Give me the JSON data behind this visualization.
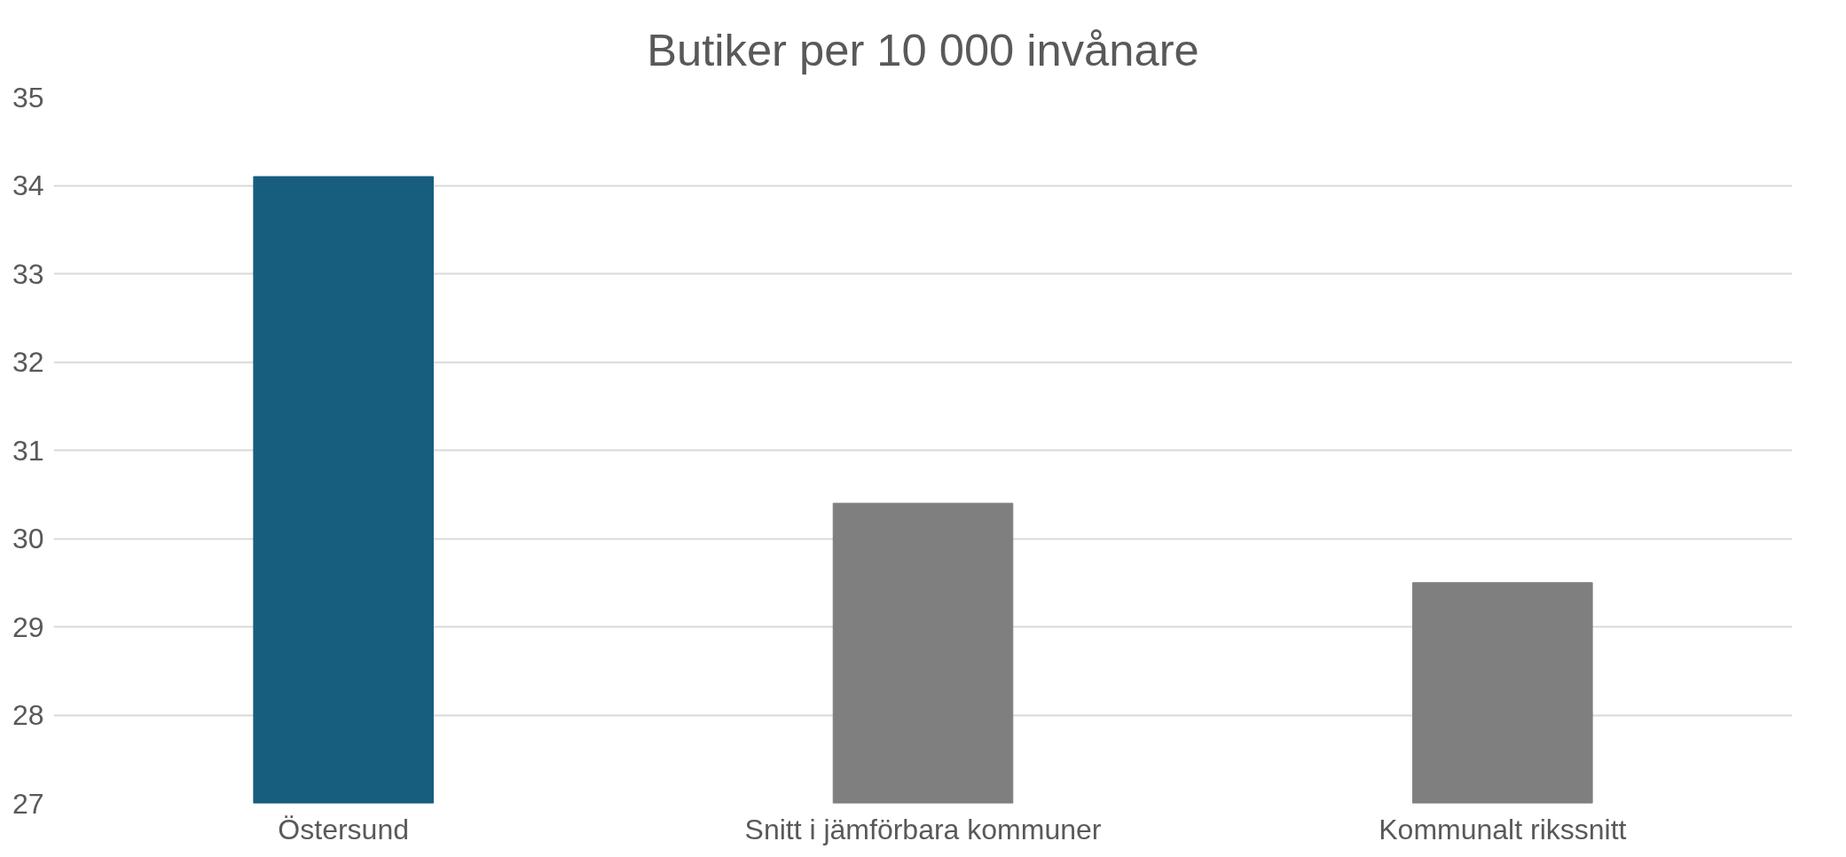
{
  "chart_data": {
    "type": "bar",
    "title": "Butiker per 10 000 invånare",
    "categories": [
      "Östersund",
      "Snitt i jämförbara kommuner",
      "Kommunalt rikssnitt"
    ],
    "values": [
      34.1,
      30.4,
      29.5
    ],
    "colors": [
      "#175e7e",
      "#7f7f7f",
      "#7f7f7f"
    ],
    "ylim": [
      27,
      35
    ],
    "yticks": [
      27,
      28,
      29,
      30,
      31,
      32,
      33,
      34,
      35
    ],
    "grid": "y"
  }
}
